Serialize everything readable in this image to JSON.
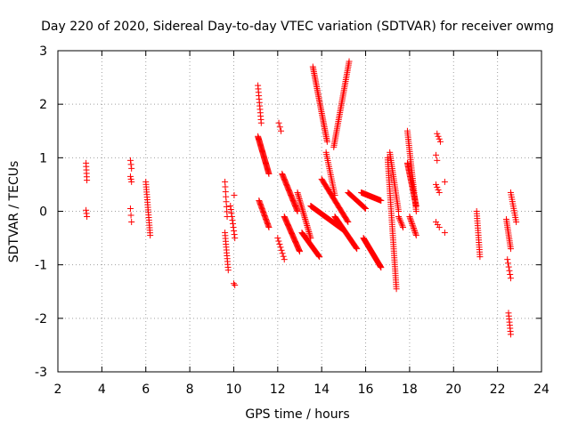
{
  "chart_data": {
    "type": "scatter",
    "title": "Day 220 of 2020, Sidereal Day-to-day VTEC variation (SDTVAR) for receiver owmg",
    "xlabel": "GPS time / hours",
    "ylabel": "SDTVAR / TECUs",
    "xlim": [
      2,
      24
    ],
    "ylim": [
      -3,
      3
    ],
    "xticks": [
      2,
      4,
      6,
      8,
      10,
      12,
      14,
      16,
      18,
      20,
      22,
      24
    ],
    "yticks": [
      -3,
      -2,
      -1,
      0,
      1,
      2,
      3
    ],
    "grid": true,
    "marker": "+",
    "color": "#ff0000",
    "series": [
      {
        "name": "SDTVAR",
        "segments": [
          {
            "x0": 3.28,
            "x1": 3.32,
            "y0": 0.9,
            "y1": 0.58,
            "n": 6
          },
          {
            "x0": 3.28,
            "x1": 3.32,
            "y0": 0.02,
            "y1": -0.1,
            "n": 3
          },
          {
            "x0": 5.3,
            "x1": 5.35,
            "y0": 0.95,
            "y1": 0.8,
            "n": 3
          },
          {
            "x0": 5.3,
            "x1": 5.35,
            "y0": 0.65,
            "y1": 0.55,
            "n": 3
          },
          {
            "x0": 5.3,
            "x1": 5.35,
            "y0": 0.05,
            "y1": -0.2,
            "n": 3
          },
          {
            "x0": 6.0,
            "x1": 6.2,
            "y0": 0.55,
            "y1": -0.45,
            "n": 22
          },
          {
            "x0": 9.6,
            "x1": 9.7,
            "y0": 0.55,
            "y1": -0.1,
            "n": 8
          },
          {
            "x0": 9.6,
            "x1": 9.75,
            "y0": -0.4,
            "y1": -1.1,
            "n": 14
          },
          {
            "x0": 9.85,
            "x1": 10.05,
            "y0": 0.1,
            "y1": -0.5,
            "n": 10
          },
          {
            "x0": 10.02,
            "x1": 10.05,
            "y0": 0.3,
            "y1": 0.3,
            "n": 1
          },
          {
            "x0": 10.0,
            "x1": 10.05,
            "y0": -1.35,
            "y1": -1.38,
            "n": 2
          },
          {
            "x0": 11.1,
            "x1": 11.25,
            "y0": 2.35,
            "y1": 1.65,
            "n": 12
          },
          {
            "x0": 11.1,
            "x1": 11.6,
            "y0": 1.4,
            "y1": 0.7,
            "n": 40
          },
          {
            "x0": 11.15,
            "x1": 11.6,
            "y0": 0.2,
            "y1": -0.3,
            "n": 24
          },
          {
            "x0": 12.05,
            "x1": 12.15,
            "y0": 1.65,
            "y1": 1.5,
            "n": 3
          },
          {
            "x0": 12.0,
            "x1": 12.3,
            "y0": -0.5,
            "y1": -0.9,
            "n": 8
          },
          {
            "x0": 12.2,
            "x1": 12.9,
            "y0": 0.7,
            "y1": 0.0,
            "n": 36
          },
          {
            "x0": 12.3,
            "x1": 13.0,
            "y0": -0.1,
            "y1": -0.75,
            "n": 36
          },
          {
            "x0": 12.9,
            "x1": 13.5,
            "y0": 0.35,
            "y1": -0.5,
            "n": 30
          },
          {
            "x0": 13.1,
            "x1": 13.9,
            "y0": -0.4,
            "y1": -0.85,
            "n": 32
          },
          {
            "x0": 13.6,
            "x1": 14.25,
            "y0": 2.7,
            "y1": 1.3,
            "n": 46
          },
          {
            "x0": 15.25,
            "x1": 14.55,
            "y0": 2.8,
            "y1": 1.2,
            "n": 48
          },
          {
            "x0": 14.2,
            "x1": 14.6,
            "y0": 1.1,
            "y1": 0.3,
            "n": 22
          },
          {
            "x0": 13.5,
            "x1": 15.0,
            "y0": 0.1,
            "y1": -0.35,
            "n": 60
          },
          {
            "x0": 14.0,
            "x1": 15.2,
            "y0": 0.6,
            "y1": -0.2,
            "n": 40
          },
          {
            "x0": 14.6,
            "x1": 15.6,
            "y0": -0.1,
            "y1": -0.7,
            "n": 40
          },
          {
            "x0": 15.2,
            "x1": 16.0,
            "y0": 0.35,
            "y1": 0.05,
            "n": 24
          },
          {
            "x0": 15.8,
            "x1": 16.7,
            "y0": 0.35,
            "y1": 0.2,
            "n": 30
          },
          {
            "x0": 15.9,
            "x1": 16.7,
            "y0": -0.5,
            "y1": -1.05,
            "n": 46
          },
          {
            "x0": 17.0,
            "x1": 17.4,
            "y0": 1.0,
            "y1": -1.45,
            "n": 60
          },
          {
            "x0": 17.1,
            "x1": 17.5,
            "y0": 1.1,
            "y1": 0.0,
            "n": 30
          },
          {
            "x0": 17.5,
            "x1": 17.7,
            "y0": -0.1,
            "y1": -0.3,
            "n": 8
          },
          {
            "x0": 17.9,
            "x1": 18.3,
            "y0": 1.5,
            "y1": 0.0,
            "n": 40
          },
          {
            "x0": 17.9,
            "x1": 18.3,
            "y0": 0.9,
            "y1": 0.1,
            "n": 36
          },
          {
            "x0": 18.0,
            "x1": 18.3,
            "y0": -0.1,
            "y1": -0.45,
            "n": 14
          },
          {
            "x0": 19.25,
            "x1": 19.4,
            "y0": 1.45,
            "y1": 1.3,
            "n": 4
          },
          {
            "x0": 19.2,
            "x1": 19.25,
            "y0": 1.05,
            "y1": 0.95,
            "n": 2
          },
          {
            "x0": 19.2,
            "x1": 19.35,
            "y0": 0.5,
            "y1": 0.35,
            "n": 4
          },
          {
            "x0": 19.2,
            "x1": 19.35,
            "y0": -0.2,
            "y1": -0.3,
            "n": 3
          },
          {
            "x0": 19.6,
            "x1": 19.65,
            "y0": 0.55,
            "y1": 0.55,
            "n": 1
          },
          {
            "x0": 19.6,
            "x1": 19.65,
            "y0": -0.4,
            "y1": -0.45,
            "n": 1
          },
          {
            "x0": 21.05,
            "x1": 21.2,
            "y0": 0.0,
            "y1": -0.85,
            "n": 20
          },
          {
            "x0": 22.4,
            "x1": 22.6,
            "y0": -0.15,
            "y1": -0.7,
            "n": 16
          },
          {
            "x0": 22.45,
            "x1": 22.6,
            "y0": -0.9,
            "y1": -1.25,
            "n": 6
          },
          {
            "x0": 22.5,
            "x1": 22.6,
            "y0": -1.9,
            "y1": -2.3,
            "n": 8
          },
          {
            "x0": 22.6,
            "x1": 22.85,
            "y0": 0.35,
            "y1": -0.2,
            "n": 14
          }
        ]
      }
    ]
  }
}
